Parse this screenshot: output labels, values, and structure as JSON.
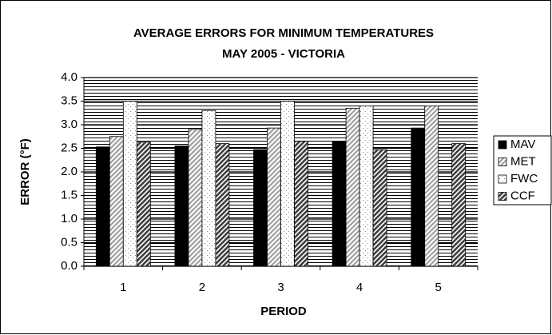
{
  "chart_data": {
    "type": "bar",
    "title": "AVERAGE ERRORS FOR MINIMUM TEMPERATURES",
    "subtitle": "MAY 2005 - VICTORIA",
    "x_label": "PERIOD",
    "y_label": "ERROR (°F)",
    "categories": [
      "1",
      "2",
      "3",
      "4",
      "5"
    ],
    "series": [
      {
        "name": "MAV",
        "color": "#000000",
        "values": [
          2.53,
          2.55,
          2.47,
          2.65,
          2.93
        ]
      },
      {
        "name": "MET",
        "color": "#a0a0a0",
        "values": [
          2.75,
          2.9,
          2.93,
          3.35,
          3.4
        ]
      },
      {
        "name": "FWC",
        "color": "#ffffff",
        "values": [
          3.5,
          3.3,
          3.5,
          3.4,
          null
        ]
      },
      {
        "name": "CCF",
        "color": "#404040",
        "values": [
          2.63,
          2.6,
          2.65,
          2.47,
          2.6
        ]
      }
    ],
    "ylim": [
      0,
      4
    ],
    "yticks": [
      {
        "value": 0,
        "label": "0.0"
      },
      0.5,
      {
        "value": 1,
        "label": "1.0"
      },
      1.5,
      {
        "value": 2,
        "label": "2.0"
      },
      2.5,
      {
        "value": 3,
        "label": "3.0"
      },
      3.5,
      {
        "value": 4,
        "label": "4.0"
      }
    ],
    "grid": true,
    "legend": "right"
  }
}
